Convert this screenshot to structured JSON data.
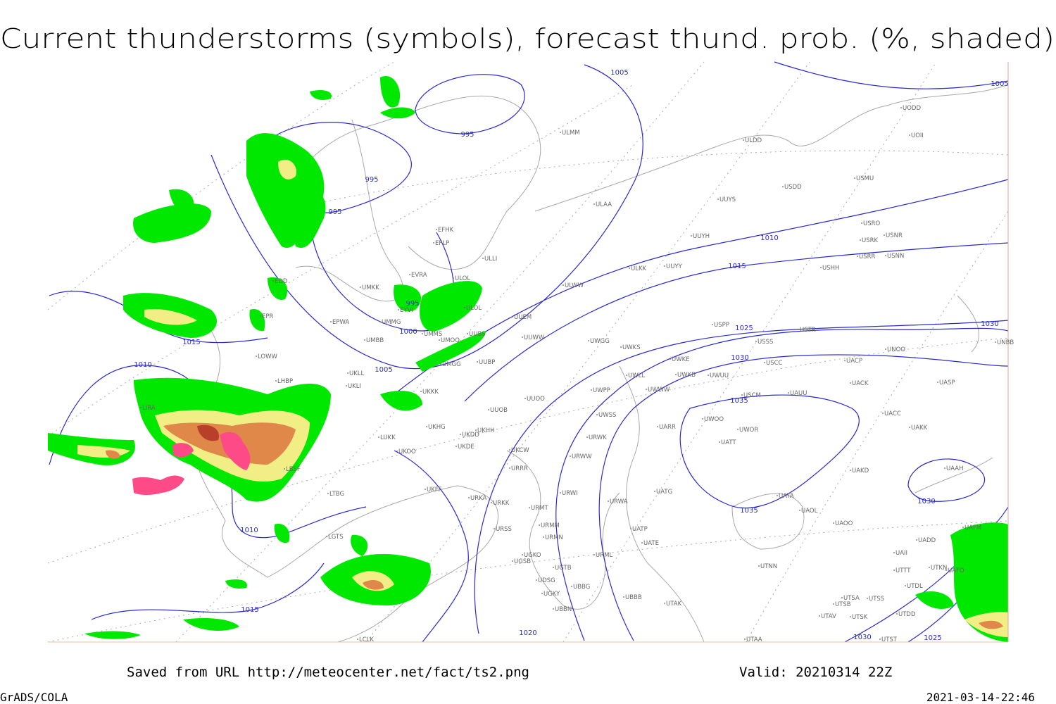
{
  "title": "Current thunderstorms (symbols), forecast thund. prob. (%, shaded)",
  "footer": {
    "source": "Saved from URL http://meteocenter.net/fact/ts2.png",
    "valid": "Valid: 20210314 22Z",
    "credit": "GrADS/COLA",
    "timestamp": "2021-03-14-22:46"
  },
  "isobar_labels": [
    1005,
    1005,
    995,
    995,
    995,
    995,
    1000,
    1005,
    1010,
    1015,
    1015,
    1010,
    1025,
    1030,
    1035,
    1035,
    1030,
    1030,
    1010,
    1015,
    1020,
    1030,
    1025
  ],
  "stations": [
    "ULMM",
    "ULDD",
    "UODD",
    "UOII",
    "USMU",
    "USDD",
    "UUYS",
    "ULAA",
    "USRO",
    "USNR",
    "USRK",
    "UUYH",
    "USRR",
    "USNN",
    "ULKK",
    "UUYY",
    "USHH",
    "ULWW",
    "UUEM",
    "USPP",
    "USTR",
    "UUWW",
    "UWGG",
    "UWKS",
    "USSS",
    "UNOO",
    "UNBB",
    "UWKE",
    "USCC",
    "UACP",
    "UWLL",
    "UWKB",
    "UWUU",
    "UWWW",
    "UACK",
    "UASP",
    "UWPP",
    "USCM",
    "UAUU",
    "UUOO",
    "UUOB",
    "UACC",
    "UWSS",
    "UWOO",
    "UARR",
    "UWOR",
    "UAKK",
    "URWK",
    "UATT",
    "UKHH",
    "UKDD",
    "UKDE",
    "UKCW",
    "URWW",
    "UAKD",
    "URRR",
    "UAAH",
    "UATG",
    "URWI",
    "URWA",
    "UATA",
    "UAOL",
    "UAOO",
    "URMT",
    "UATP",
    "URMM",
    "URSS",
    "URMN",
    "UATE",
    "UADD",
    "UAFM",
    "UAII",
    "URML",
    "UGKO",
    "UGSB",
    "UTNN",
    "UGTB",
    "UTTT",
    "UTKN",
    "UAFO",
    "UDSG",
    "UTDL",
    "UBBG",
    "UGKY",
    "UBBB",
    "UTSA",
    "UTSS",
    "UTSB",
    "UTAK",
    "UBBN",
    "UTDD",
    "UTAV",
    "UTSK",
    "UTAA",
    "UTST",
    "EFHK",
    "EFLP",
    "ULLI",
    "EVRA",
    "ULOL",
    "EDD",
    "UMKK",
    "EYVI",
    "ULOL",
    "EPWA",
    "UMMG",
    "UMMS",
    "UMOO",
    "UUBS",
    "EPR",
    "UMBB",
    "UUBP",
    "UMGG",
    "LOWW",
    "UKLL",
    "UKLI",
    "UKKK",
    "LHBP",
    "LIRA",
    "UKHG",
    "LUKK",
    "UKOO",
    "LBSF",
    "UKFF",
    "URKA",
    "URKK",
    "LTBG",
    "LGTS",
    "LCLK"
  ]
}
